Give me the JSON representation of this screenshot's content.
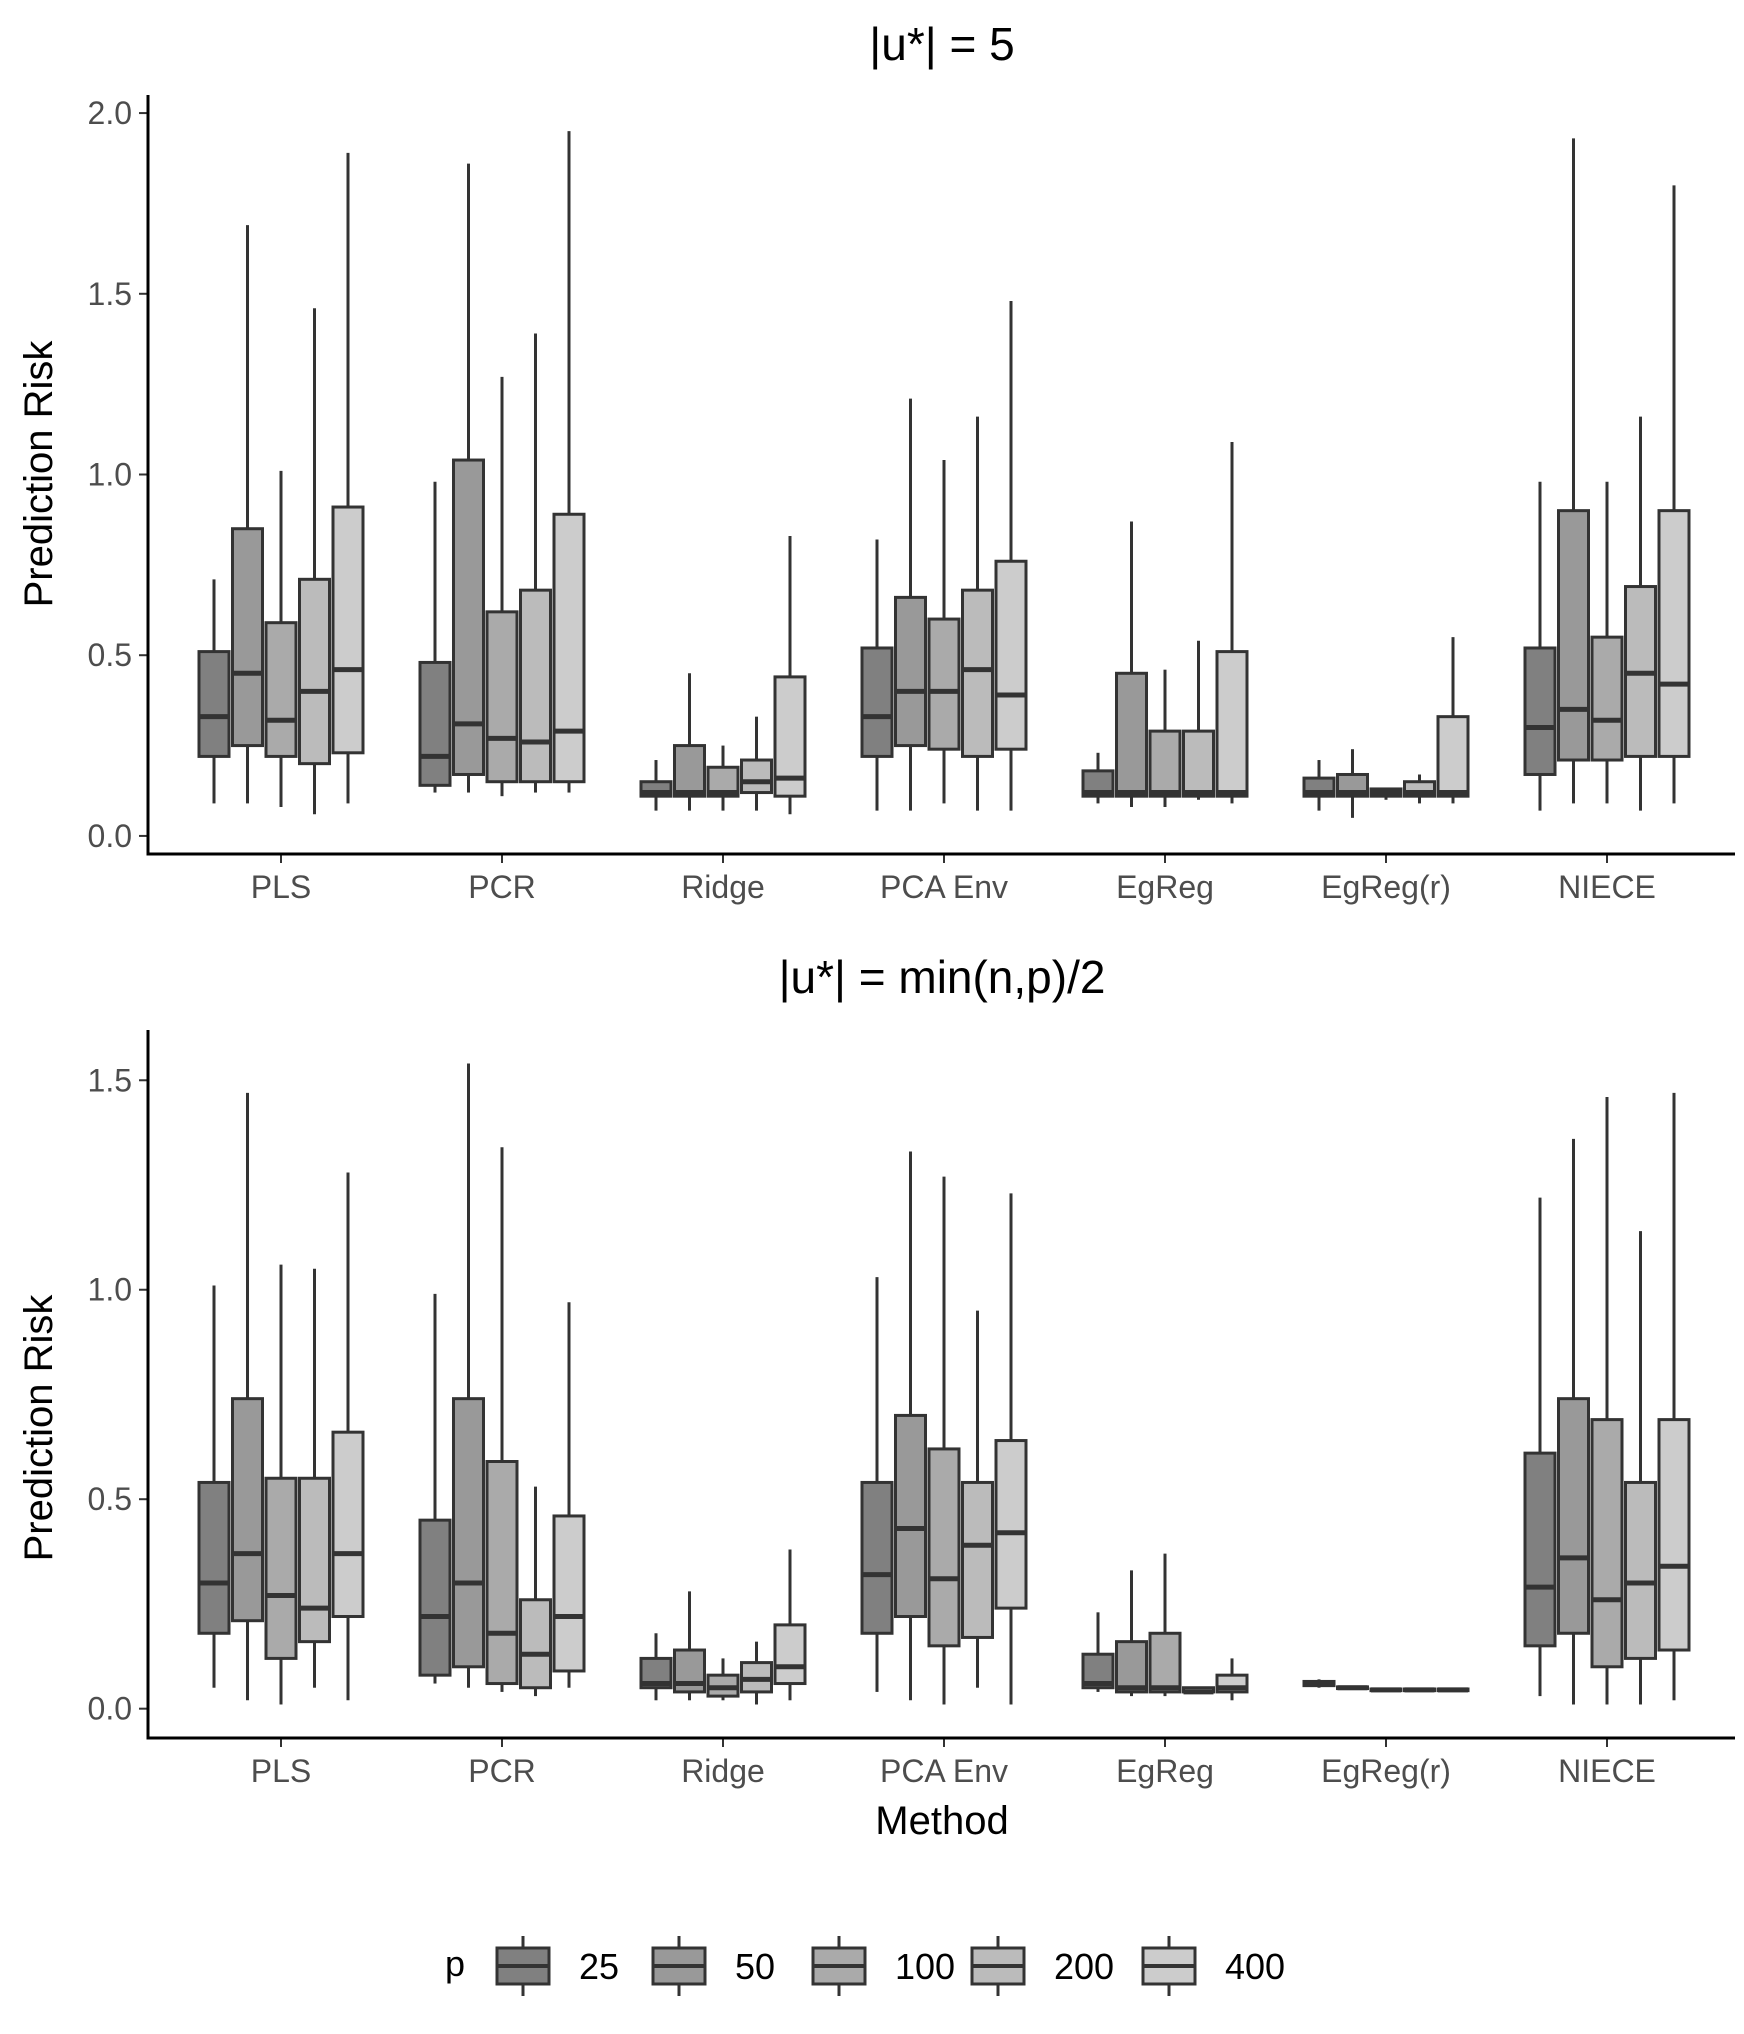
{
  "chart_data": [
    {
      "type": "boxplot",
      "title": "|u*| = 5",
      "xlabel": "",
      "ylabel": "Prediction Risk",
      "ylim": [
        -0.05,
        2.05
      ],
      "yticks": [
        0.0,
        0.5,
        1.0,
        1.5,
        2.0
      ],
      "ytick_labels": [
        "0.0",
        "0.5",
        "1.0",
        "1.5",
        "2.0"
      ],
      "categories": [
        "PLS",
        "PCR",
        "Ridge",
        "PCA Env",
        "EgReg",
        "EgReg(r)",
        "NIECE"
      ],
      "groups": [
        {
          "category": "PLS",
          "boxes": [
            {
              "p": "25",
              "min": 0.09,
              "q1": 0.22,
              "median": 0.33,
              "q3": 0.51,
              "max": 0.71
            },
            {
              "p": "50",
              "min": 0.09,
              "q1": 0.25,
              "median": 0.45,
              "q3": 0.85,
              "max": 1.69
            },
            {
              "p": "100",
              "min": 0.08,
              "q1": 0.22,
              "median": 0.32,
              "q3": 0.59,
              "max": 1.01
            },
            {
              "p": "200",
              "min": 0.06,
              "q1": 0.2,
              "median": 0.4,
              "q3": 0.71,
              "max": 1.46
            },
            {
              "p": "400",
              "min": 0.09,
              "q1": 0.23,
              "median": 0.46,
              "q3": 0.91,
              "max": 1.89
            }
          ]
        },
        {
          "category": "PCR",
          "boxes": [
            {
              "p": "25",
              "min": 0.12,
              "q1": 0.14,
              "median": 0.22,
              "q3": 0.48,
              "max": 0.98
            },
            {
              "p": "50",
              "min": 0.12,
              "q1": 0.17,
              "median": 0.31,
              "q3": 1.04,
              "max": 1.86
            },
            {
              "p": "100",
              "min": 0.11,
              "q1": 0.15,
              "median": 0.27,
              "q3": 0.62,
              "max": 1.27
            },
            {
              "p": "200",
              "min": 0.12,
              "q1": 0.15,
              "median": 0.26,
              "q3": 0.68,
              "max": 1.39
            },
            {
              "p": "400",
              "min": 0.12,
              "q1": 0.15,
              "median": 0.29,
              "q3": 0.89,
              "max": 1.95
            }
          ]
        },
        {
          "category": "Ridge",
          "boxes": [
            {
              "p": "25",
              "min": 0.07,
              "q1": 0.11,
              "median": 0.12,
              "q3": 0.15,
              "max": 0.21
            },
            {
              "p": "50",
              "min": 0.07,
              "q1": 0.11,
              "median": 0.12,
              "q3": 0.25,
              "max": 0.45
            },
            {
              "p": "100",
              "min": 0.07,
              "q1": 0.11,
              "median": 0.12,
              "q3": 0.19,
              "max": 0.25
            },
            {
              "p": "200",
              "min": 0.07,
              "q1": 0.12,
              "median": 0.15,
              "q3": 0.21,
              "max": 0.33
            },
            {
              "p": "400",
              "min": 0.06,
              "q1": 0.11,
              "median": 0.16,
              "q3": 0.44,
              "max": 0.83
            }
          ]
        },
        {
          "category": "PCA Env",
          "boxes": [
            {
              "p": "25",
              "min": 0.07,
              "q1": 0.22,
              "median": 0.33,
              "q3": 0.52,
              "max": 0.82
            },
            {
              "p": "50",
              "min": 0.07,
              "q1": 0.25,
              "median": 0.4,
              "q3": 0.66,
              "max": 1.21
            },
            {
              "p": "100",
              "min": 0.09,
              "q1": 0.24,
              "median": 0.4,
              "q3": 0.6,
              "max": 1.04
            },
            {
              "p": "200",
              "min": 0.07,
              "q1": 0.22,
              "median": 0.46,
              "q3": 0.68,
              "max": 1.16
            },
            {
              "p": "400",
              "min": 0.07,
              "q1": 0.24,
              "median": 0.39,
              "q3": 0.76,
              "max": 1.48
            }
          ]
        },
        {
          "category": "EgReg",
          "boxes": [
            {
              "p": "25",
              "min": 0.09,
              "q1": 0.11,
              "median": 0.12,
              "q3": 0.18,
              "max": 0.23
            },
            {
              "p": "50",
              "min": 0.08,
              "q1": 0.11,
              "median": 0.12,
              "q3": 0.45,
              "max": 0.87
            },
            {
              "p": "100",
              "min": 0.08,
              "q1": 0.11,
              "median": 0.12,
              "q3": 0.29,
              "max": 0.46
            },
            {
              "p": "200",
              "min": 0.1,
              "q1": 0.11,
              "median": 0.12,
              "q3": 0.29,
              "max": 0.54
            },
            {
              "p": "400",
              "min": 0.09,
              "q1": 0.11,
              "median": 0.12,
              "q3": 0.51,
              "max": 1.09
            }
          ]
        },
        {
          "category": "EgReg(r)",
          "boxes": [
            {
              "p": "25",
              "min": 0.07,
              "q1": 0.11,
              "median": 0.12,
              "q3": 0.16,
              "max": 0.21
            },
            {
              "p": "50",
              "min": 0.05,
              "q1": 0.11,
              "median": 0.12,
              "q3": 0.17,
              "max": 0.24
            },
            {
              "p": "100",
              "min": 0.1,
              "q1": 0.11,
              "median": 0.12,
              "q3": 0.13,
              "max": 0.13
            },
            {
              "p": "200",
              "min": 0.09,
              "q1": 0.11,
              "median": 0.12,
              "q3": 0.15,
              "max": 0.17
            },
            {
              "p": "400",
              "min": 0.09,
              "q1": 0.11,
              "median": 0.12,
              "q3": 0.33,
              "max": 0.55
            }
          ]
        },
        {
          "category": "NIECE",
          "boxes": [
            {
              "p": "25",
              "min": 0.07,
              "q1": 0.17,
              "median": 0.3,
              "q3": 0.52,
              "max": 0.98
            },
            {
              "p": "50",
              "min": 0.09,
              "q1": 0.21,
              "median": 0.35,
              "q3": 0.9,
              "max": 1.93
            },
            {
              "p": "100",
              "min": 0.09,
              "q1": 0.21,
              "median": 0.32,
              "q3": 0.55,
              "max": 0.98
            },
            {
              "p": "200",
              "min": 0.07,
              "q1": 0.22,
              "median": 0.45,
              "q3": 0.69,
              "max": 1.16
            },
            {
              "p": "400",
              "min": 0.09,
              "q1": 0.22,
              "median": 0.42,
              "q3": 0.9,
              "max": 1.8
            }
          ]
        }
      ]
    },
    {
      "type": "boxplot",
      "title": "|u*| = min(n,p)/2",
      "xlabel": "Method",
      "ylabel": "Prediction Risk",
      "ylim": [
        -0.07,
        1.62
      ],
      "yticks": [
        0.0,
        0.5,
        1.0,
        1.5
      ],
      "ytick_labels": [
        "0.0",
        "0.5",
        "1.0",
        "1.5"
      ],
      "categories": [
        "PLS",
        "PCR",
        "Ridge",
        "PCA Env",
        "EgReg",
        "EgReg(r)",
        "NIECE"
      ],
      "groups": [
        {
          "category": "PLS",
          "boxes": [
            {
              "p": "25",
              "min": 0.05,
              "q1": 0.18,
              "median": 0.3,
              "q3": 0.54,
              "max": 1.01
            },
            {
              "p": "50",
              "min": 0.02,
              "q1": 0.21,
              "median": 0.37,
              "q3": 0.74,
              "max": 1.47
            },
            {
              "p": "100",
              "min": 0.01,
              "q1": 0.12,
              "median": 0.27,
              "q3": 0.55,
              "max": 1.06
            },
            {
              "p": "200",
              "min": 0.05,
              "q1": 0.16,
              "median": 0.24,
              "q3": 0.55,
              "max": 1.05
            },
            {
              "p": "400",
              "min": 0.02,
              "q1": 0.22,
              "median": 0.37,
              "q3": 0.66,
              "max": 1.28
            }
          ]
        },
        {
          "category": "PCR",
          "boxes": [
            {
              "p": "25",
              "min": 0.06,
              "q1": 0.08,
              "median": 0.22,
              "q3": 0.45,
              "max": 0.99
            },
            {
              "p": "50",
              "min": 0.05,
              "q1": 0.1,
              "median": 0.3,
              "q3": 0.74,
              "max": 1.54
            },
            {
              "p": "100",
              "min": 0.04,
              "q1": 0.06,
              "median": 0.18,
              "q3": 0.59,
              "max": 1.34
            },
            {
              "p": "200",
              "min": 0.03,
              "q1": 0.05,
              "median": 0.13,
              "q3": 0.26,
              "max": 0.53
            },
            {
              "p": "400",
              "min": 0.05,
              "q1": 0.09,
              "median": 0.22,
              "q3": 0.46,
              "max": 0.97
            }
          ]
        },
        {
          "category": "Ridge",
          "boxes": [
            {
              "p": "25",
              "min": 0.02,
              "q1": 0.05,
              "median": 0.06,
              "q3": 0.12,
              "max": 0.18
            },
            {
              "p": "50",
              "min": 0.02,
              "q1": 0.04,
              "median": 0.06,
              "q3": 0.14,
              "max": 0.28
            },
            {
              "p": "100",
              "min": 0.02,
              "q1": 0.03,
              "median": 0.05,
              "q3": 0.08,
              "max": 0.12
            },
            {
              "p": "200",
              "min": 0.01,
              "q1": 0.04,
              "median": 0.07,
              "q3": 0.11,
              "max": 0.16
            },
            {
              "p": "400",
              "min": 0.02,
              "q1": 0.06,
              "median": 0.1,
              "q3": 0.2,
              "max": 0.38
            }
          ]
        },
        {
          "category": "PCA Env",
          "boxes": [
            {
              "p": "25",
              "min": 0.04,
              "q1": 0.18,
              "median": 0.32,
              "q3": 0.54,
              "max": 1.03
            },
            {
              "p": "50",
              "min": 0.02,
              "q1": 0.22,
              "median": 0.43,
              "q3": 0.7,
              "max": 1.33
            },
            {
              "p": "100",
              "min": 0.01,
              "q1": 0.15,
              "median": 0.31,
              "q3": 0.62,
              "max": 1.27
            },
            {
              "p": "200",
              "min": 0.05,
              "q1": 0.17,
              "median": 0.39,
              "q3": 0.54,
              "max": 0.95
            },
            {
              "p": "400",
              "min": 0.01,
              "q1": 0.24,
              "median": 0.42,
              "q3": 0.64,
              "max": 1.23
            }
          ]
        },
        {
          "category": "EgReg",
          "boxes": [
            {
              "p": "25",
              "min": 0.04,
              "q1": 0.05,
              "median": 0.06,
              "q3": 0.13,
              "max": 0.23
            },
            {
              "p": "50",
              "min": 0.03,
              "q1": 0.04,
              "median": 0.05,
              "q3": 0.16,
              "max": 0.33
            },
            {
              "p": "100",
              "min": 0.03,
              "q1": 0.04,
              "median": 0.05,
              "q3": 0.18,
              "max": 0.37
            },
            {
              "p": "200",
              "min": 0.04,
              "q1": 0.04,
              "median": 0.04,
              "q3": 0.05,
              "max": 0.05
            },
            {
              "p": "400",
              "min": 0.02,
              "q1": 0.04,
              "median": 0.05,
              "q3": 0.08,
              "max": 0.12
            }
          ]
        },
        {
          "category": "EgReg(r)",
          "boxes": [
            {
              "p": "25",
              "min": 0.05,
              "q1": 0.055,
              "median": 0.06,
              "q3": 0.065,
              "max": 0.07
            },
            {
              "p": "50",
              "min": 0.045,
              "q1": 0.048,
              "median": 0.05,
              "q3": 0.052,
              "max": 0.055
            },
            {
              "p": "100",
              "min": 0.04,
              "q1": 0.043,
              "median": 0.045,
              "q3": 0.047,
              "max": 0.05
            },
            {
              "p": "200",
              "min": 0.04,
              "q1": 0.043,
              "median": 0.045,
              "q3": 0.047,
              "max": 0.05
            },
            {
              "p": "400",
              "min": 0.04,
              "q1": 0.043,
              "median": 0.045,
              "q3": 0.047,
              "max": 0.05
            }
          ]
        },
        {
          "category": "NIECE",
          "boxes": [
            {
              "p": "25",
              "min": 0.03,
              "q1": 0.15,
              "median": 0.29,
              "q3": 0.61,
              "max": 1.22
            },
            {
              "p": "50",
              "min": 0.01,
              "q1": 0.18,
              "median": 0.36,
              "q3": 0.74,
              "max": 1.36
            },
            {
              "p": "100",
              "min": 0.01,
              "q1": 0.1,
              "median": 0.26,
              "q3": 0.69,
              "max": 1.46
            },
            {
              "p": "200",
              "min": 0.01,
              "q1": 0.12,
              "median": 0.3,
              "q3": 0.54,
              "max": 1.14
            },
            {
              "p": "400",
              "min": 0.02,
              "q1": 0.14,
              "median": 0.34,
              "q3": 0.69,
              "max": 1.47
            }
          ]
        }
      ]
    }
  ],
  "legend": {
    "title": "p",
    "labels": [
      "25",
      "50",
      "100",
      "200",
      "400"
    ],
    "fills": [
      "#808080",
      "#999999",
      "#aaaaaa",
      "#bbbbbb",
      "#cccccc"
    ]
  },
  "colors": {
    "stroke": "#333333",
    "axis": "#000000",
    "tick_label": "#4d4d4d"
  }
}
